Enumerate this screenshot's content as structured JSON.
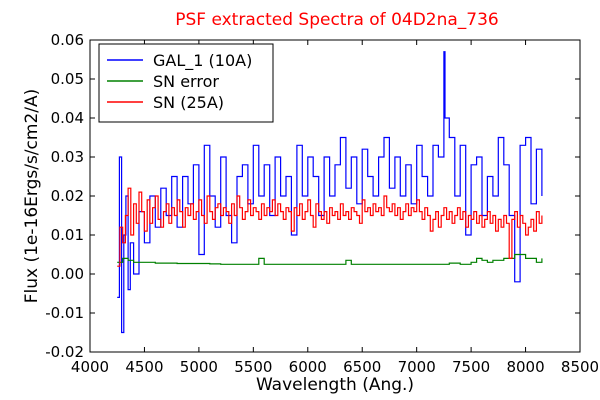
{
  "chart_data": {
    "type": "line",
    "title": "PSF extracted Spectra of 04D2na_736",
    "title_color": "#ff0000",
    "xlabel": "Wavelength (Ang.)",
    "ylabel": "Flux (1e-16Ergs/s/cm2/A)",
    "xlim": [
      4000,
      8500
    ],
    "ylim": [
      -0.02,
      0.06
    ],
    "xticks": [
      "4000",
      "4500",
      "5000",
      "5500",
      "6000",
      "6500",
      "7000",
      "7500",
      "8000",
      "8500"
    ],
    "yticks": [
      "-0.02",
      "-0.01",
      "0.00",
      "0.01",
      "0.02",
      "0.03",
      "0.04",
      "0.05",
      "0.06"
    ],
    "grid": false,
    "legend_position": "top-left",
    "series": [
      {
        "name": "GAL_1 (10A)",
        "color": "#0000ff",
        "x": [
          4250,
          4270,
          4290,
          4310,
          4330,
          4350,
          4370,
          4400,
          4450,
          4500,
          4550,
          4600,
          4650,
          4700,
          4750,
          4800,
          4850,
          4900,
          4950,
          5000,
          5050,
          5100,
          5150,
          5200,
          5250,
          5300,
          5350,
          5400,
          5450,
          5500,
          5550,
          5600,
          5650,
          5700,
          5750,
          5800,
          5850,
          5900,
          5950,
          6000,
          6050,
          6100,
          6150,
          6200,
          6250,
          6300,
          6350,
          6400,
          6450,
          6500,
          6550,
          6600,
          6650,
          6700,
          6750,
          6800,
          6850,
          6900,
          6950,
          7000,
          7050,
          7100,
          7150,
          7200,
          7250,
          7260,
          7300,
          7350,
          7400,
          7450,
          7500,
          7550,
          7600,
          7650,
          7700,
          7750,
          7800,
          7850,
          7900,
          7950,
          8000,
          8050,
          8100,
          8150
        ],
        "y": [
          -0.006,
          0.03,
          -0.015,
          0.01,
          0.02,
          -0.004,
          0.008,
          0.0,
          0.016,
          0.008,
          0.02,
          0.012,
          0.022,
          0.015,
          0.025,
          0.012,
          0.025,
          0.018,
          0.028,
          0.005,
          0.033,
          0.02,
          0.012,
          0.03,
          0.015,
          0.008,
          0.025,
          0.028,
          0.018,
          0.033,
          0.02,
          0.028,
          0.015,
          0.03,
          0.02,
          0.025,
          0.01,
          0.033,
          0.02,
          0.03,
          0.025,
          0.015,
          0.03,
          0.02,
          0.028,
          0.035,
          0.022,
          0.03,
          0.018,
          0.032,
          0.025,
          0.02,
          0.03,
          0.035,
          0.022,
          0.03,
          0.02,
          0.028,
          0.018,
          0.033,
          0.025,
          0.02,
          0.033,
          0.03,
          0.057,
          0.04,
          0.035,
          0.02,
          0.033,
          0.01,
          0.028,
          0.03,
          0.015,
          0.025,
          0.02,
          0.035,
          0.028,
          0.015,
          -0.002,
          0.033,
          0.035,
          0.018,
          0.032,
          0.02
        ]
      },
      {
        "name": "SN error",
        "color": "#008000",
        "x": [
          4250,
          4300,
          4350,
          4400,
          4450,
          4500,
          4600,
          4700,
          4800,
          4900,
          5000,
          5100,
          5200,
          5300,
          5400,
          5500,
          5550,
          5600,
          5700,
          5800,
          5900,
          6000,
          6100,
          6200,
          6300,
          6350,
          6400,
          6500,
          6600,
          6700,
          6800,
          6900,
          7000,
          7100,
          7200,
          7300,
          7400,
          7500,
          7550,
          7600,
          7650,
          7700,
          7800,
          7900,
          8000,
          8100,
          8150
        ],
        "y": [
          0.003,
          0.004,
          0.0035,
          0.003,
          0.003,
          0.003,
          0.0028,
          0.0028,
          0.0027,
          0.0027,
          0.0027,
          0.0026,
          0.0025,
          0.0025,
          0.0025,
          0.0025,
          0.004,
          0.0025,
          0.0025,
          0.0025,
          0.0025,
          0.0025,
          0.0025,
          0.0025,
          0.0025,
          0.0035,
          0.0025,
          0.0025,
          0.0025,
          0.0025,
          0.0025,
          0.0025,
          0.0025,
          0.0025,
          0.0025,
          0.0028,
          0.0025,
          0.003,
          0.004,
          0.0035,
          0.003,
          0.0035,
          0.004,
          0.005,
          0.004,
          0.003,
          0.004
        ]
      },
      {
        "name": "SN (25A)",
        "color": "#ff0000",
        "x": [
          4250,
          4275,
          4300,
          4325,
          4350,
          4375,
          4400,
          4425,
          4450,
          4475,
          4500,
          4525,
          4550,
          4575,
          4600,
          4625,
          4650,
          4675,
          4700,
          4725,
          4750,
          4775,
          4800,
          4825,
          4850,
          4875,
          4900,
          4925,
          4950,
          4975,
          5000,
          5025,
          5050,
          5075,
          5100,
          5125,
          5150,
          5175,
          5200,
          5225,
          5250,
          5275,
          5300,
          5325,
          5350,
          5375,
          5400,
          5425,
          5450,
          5475,
          5500,
          5525,
          5550,
          5575,
          5600,
          5625,
          5650,
          5675,
          5700,
          5725,
          5750,
          5775,
          5800,
          5825,
          5850,
          5875,
          5900,
          5925,
          5950,
          5975,
          6000,
          6025,
          6050,
          6075,
          6100,
          6125,
          6150,
          6175,
          6200,
          6225,
          6250,
          6275,
          6300,
          6325,
          6350,
          6375,
          6400,
          6425,
          6450,
          6475,
          6500,
          6525,
          6550,
          6575,
          6600,
          6625,
          6650,
          6675,
          6700,
          6725,
          6750,
          6775,
          6800,
          6825,
          6850,
          6875,
          6900,
          6925,
          6950,
          6975,
          7000,
          7025,
          7050,
          7075,
          7100,
          7125,
          7150,
          7175,
          7200,
          7225,
          7250,
          7275,
          7300,
          7325,
          7350,
          7375,
          7400,
          7425,
          7450,
          7475,
          7500,
          7525,
          7550,
          7575,
          7600,
          7625,
          7650,
          7675,
          7700,
          7725,
          7750,
          7775,
          7800,
          7825,
          7850,
          7875,
          7900,
          7925,
          7950,
          7975,
          8000,
          8025,
          8050,
          8075,
          8100,
          8125,
          8150
        ],
        "y": [
          0.002,
          0.012,
          0.008,
          0.015,
          0.022,
          0.01,
          0.018,
          0.013,
          0.021,
          0.016,
          0.011,
          0.019,
          0.013,
          0.017,
          0.02,
          0.014,
          0.012,
          0.016,
          0.018,
          0.013,
          0.017,
          0.015,
          0.019,
          0.016,
          0.012,
          0.017,
          0.015,
          0.018,
          0.014,
          0.016,
          0.019,
          0.015,
          0.013,
          0.02,
          0.016,
          0.014,
          0.017,
          0.018,
          0.015,
          0.017,
          0.016,
          0.013,
          0.018,
          0.015,
          0.02,
          0.017,
          0.014,
          0.016,
          0.019,
          0.015,
          0.017,
          0.016,
          0.014,
          0.018,
          0.015,
          0.017,
          0.016,
          0.019,
          0.015,
          0.018,
          0.016,
          0.014,
          0.017,
          0.016,
          0.011,
          0.017,
          0.015,
          0.018,
          0.014,
          0.016,
          0.019,
          0.015,
          0.012,
          0.018,
          0.016,
          0.014,
          0.016,
          0.013,
          0.017,
          0.015,
          0.016,
          0.014,
          0.018,
          0.015,
          0.016,
          0.014,
          0.017,
          0.016,
          0.015,
          0.013,
          0.019,
          0.016,
          0.017,
          0.015,
          0.018,
          0.016,
          0.017,
          0.015,
          0.02,
          0.017,
          0.016,
          0.018,
          0.015,
          0.017,
          0.014,
          0.016,
          0.018,
          0.015,
          0.017,
          0.016,
          0.019,
          0.016,
          0.014,
          0.017,
          0.015,
          0.011,
          0.014,
          0.016,
          0.012,
          0.015,
          0.017,
          0.014,
          0.016,
          0.013,
          0.015,
          0.017,
          0.014,
          0.016,
          0.012,
          0.015,
          0.014,
          0.016,
          0.013,
          0.015,
          0.012,
          0.014,
          0.016,
          0.013,
          0.015,
          0.011,
          0.014,
          0.012,
          0.015,
          0.013,
          0.004,
          0.014,
          0.016,
          0.012,
          0.015,
          0.013,
          0.01,
          0.012,
          0.014,
          0.011,
          0.016,
          0.013,
          0.015
        ]
      }
    ]
  }
}
